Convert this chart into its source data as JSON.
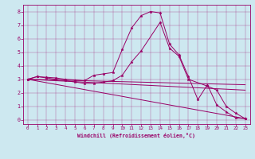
{
  "xlabel": "Windchill (Refroidissement éolien,°C)",
  "bg_color": "#cde8f0",
  "line_color": "#990066",
  "xlim": [
    -0.5,
    23.5
  ],
  "ylim": [
    -0.3,
    8.5
  ],
  "xticks": [
    0,
    1,
    2,
    3,
    4,
    5,
    6,
    7,
    8,
    9,
    10,
    11,
    12,
    13,
    14,
    15,
    16,
    17,
    18,
    19,
    20,
    21,
    22,
    23
  ],
  "yticks": [
    0,
    1,
    2,
    3,
    4,
    5,
    6,
    7,
    8
  ],
  "lines": [
    {
      "x": [
        0,
        1,
        2,
        3,
        4,
        5,
        6,
        7,
        8,
        9,
        10,
        11,
        12,
        13,
        14,
        15,
        16,
        17,
        18,
        19,
        20,
        21,
        22,
        23
      ],
      "y": [
        3.0,
        3.2,
        3.15,
        3.1,
        3.0,
        2.95,
        2.9,
        3.3,
        3.4,
        3.5,
        5.2,
        6.8,
        7.7,
        8.0,
        7.9,
        5.6,
        4.8,
        3.2,
        1.5,
        2.6,
        1.1,
        0.6,
        0.15,
        0.1
      ],
      "marker": true
    },
    {
      "x": [
        0,
        1,
        2,
        3,
        4,
        5,
        6,
        7,
        8,
        9,
        10,
        11,
        12,
        14,
        15,
        16,
        17,
        19,
        20,
        21,
        22,
        23
      ],
      "y": [
        3.0,
        3.2,
        3.1,
        3.0,
        2.9,
        2.8,
        2.7,
        2.7,
        2.8,
        2.9,
        3.3,
        4.3,
        5.1,
        7.2,
        5.3,
        4.7,
        3.0,
        2.5,
        2.2,
        1.0,
        0.5,
        0.1
      ],
      "marker": true
    },
    {
      "x": [
        0,
        23
      ],
      "y": [
        3.0,
        2.6
      ],
      "marker": false
    },
    {
      "x": [
        0,
        23
      ],
      "y": [
        3.0,
        2.2
      ],
      "marker": false
    },
    {
      "x": [
        0,
        23
      ],
      "y": [
        3.0,
        0.1
      ],
      "marker": false
    }
  ]
}
